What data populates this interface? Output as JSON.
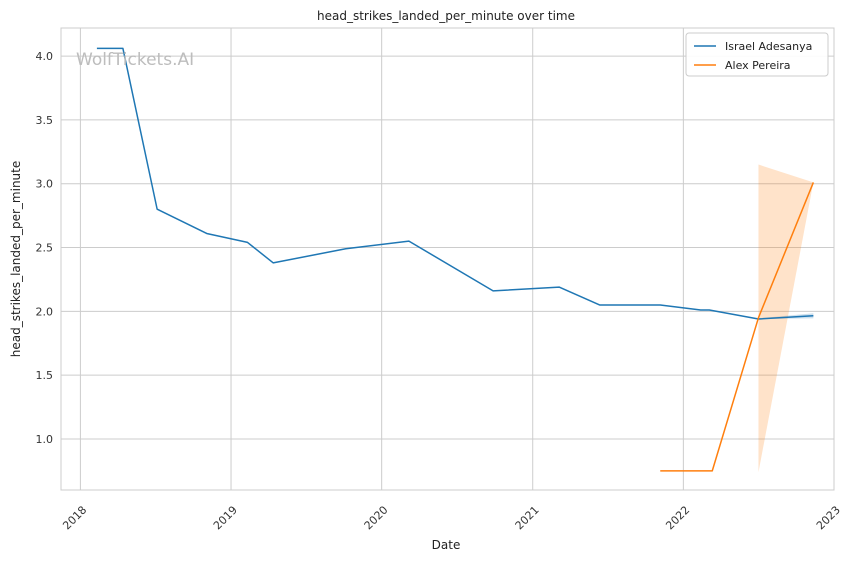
{
  "chart_data": {
    "type": "line",
    "title": "head_strikes_landed_per_minute over time",
    "xlabel": "Date",
    "ylabel": "head_strikes_landed_per_minute",
    "watermark": "WolfTickets.AI",
    "xlim": [
      "2017-11-15",
      "2023-01-01"
    ],
    "ylim": [
      0.6,
      4.22
    ],
    "x_ticks": [
      "2018",
      "2019",
      "2020",
      "2021",
      "2022",
      "2023"
    ],
    "x_tick_dates": [
      "2018-01-01",
      "2019-01-01",
      "2020-01-01",
      "2021-01-01",
      "2022-01-01",
      "2023-01-01"
    ],
    "y_ticks": [
      1.0,
      1.5,
      2.0,
      2.5,
      3.0,
      3.5,
      4.0
    ],
    "y_tick_labels": [
      "1.0",
      "1.5",
      "2.0",
      "2.5",
      "3.0",
      "3.5",
      "4.0"
    ],
    "grid": true,
    "legend_position": "top-right",
    "series": [
      {
        "name": "Israel Adesanya",
        "color": "#1f77b4",
        "points": [
          {
            "x": "2018-02-10",
            "y": 4.06
          },
          {
            "x": "2018-04-14",
            "y": 4.06
          },
          {
            "x": "2018-07-06",
            "y": 2.8
          },
          {
            "x": "2018-11-03",
            "y": 2.61
          },
          {
            "x": "2019-02-10",
            "y": 2.54
          },
          {
            "x": "2019-04-13",
            "y": 2.38
          },
          {
            "x": "2019-10-06",
            "y": 2.49
          },
          {
            "x": "2020-03-07",
            "y": 2.55
          },
          {
            "x": "2020-09-27",
            "y": 2.16
          },
          {
            "x": "2021-03-06",
            "y": 2.19
          },
          {
            "x": "2021-06-12",
            "y": 2.05
          },
          {
            "x": "2021-11-06",
            "y": 2.05
          },
          {
            "x": "2022-02-12",
            "y": 2.01
          },
          {
            "x": "2022-03-05",
            "y": 2.01
          },
          {
            "x": "2022-07-02",
            "y": 1.94
          },
          {
            "x": "2022-11-12",
            "y": 1.965
          }
        ],
        "band": [
          {
            "x": "2022-07-02",
            "lower": 1.94,
            "upper": 1.945
          },
          {
            "x": "2022-11-12",
            "lower": 1.945,
            "upper": 1.985
          }
        ]
      },
      {
        "name": "Alex Pereira",
        "color": "#ff7f0e",
        "points": [
          {
            "x": "2021-11-06",
            "y": 0.75
          },
          {
            "x": "2022-03-12",
            "y": 0.75
          },
          {
            "x": "2022-07-02",
            "y": 1.95
          },
          {
            "x": "2022-11-12",
            "y": 3.01
          }
        ],
        "band": [
          {
            "x": "2022-07-02",
            "lower": 0.74,
            "upper": 3.15
          },
          {
            "x": "2022-11-12",
            "lower": 3.01,
            "upper": 3.01
          }
        ]
      }
    ]
  }
}
